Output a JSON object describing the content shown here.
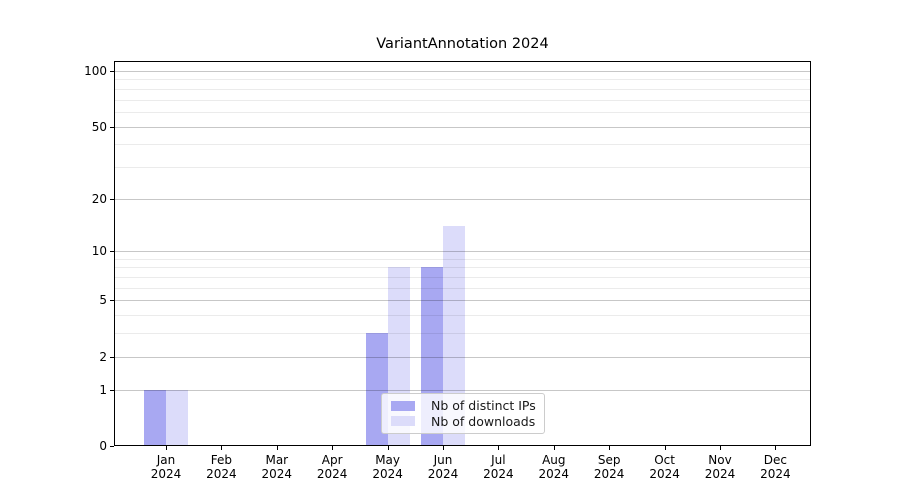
{
  "title": "VariantAnnotation 2024",
  "chart_data": {
    "type": "bar",
    "title": "VariantAnnotation 2024",
    "categories": [
      "Jan",
      "Feb",
      "Mar",
      "Apr",
      "May",
      "Jun",
      "Jul",
      "Aug",
      "Sep",
      "Oct",
      "Nov",
      "Dec"
    ],
    "x_tick_second_line": "2024",
    "series": [
      {
        "name": "Nb of distinct IPs",
        "color": "#a8a8f2",
        "values": [
          1,
          0,
          0,
          0,
          3,
          8,
          0,
          0,
          0,
          0,
          0,
          0
        ]
      },
      {
        "name": "Nb of downloads",
        "color": "#dcdcfa",
        "values": [
          1,
          0,
          0,
          0,
          8,
          14,
          0,
          0,
          0,
          0,
          0,
          0
        ]
      }
    ],
    "y_scale": "log1p",
    "ylim": [
      0,
      100
    ],
    "y_ticks": [
      0,
      1,
      2,
      5,
      10,
      20,
      50,
      100
    ],
    "y_minor_gridlines": [
      3,
      4,
      6,
      7,
      8,
      9,
      30,
      40,
      60,
      70,
      80,
      90
    ],
    "grid": true,
    "legend_position": "lower center"
  },
  "colors": {
    "bar_distinct_ips": "#a8a8f2",
    "bar_downloads": "#dcdcfa",
    "grid_major": "rgba(0,0,0,0.22)",
    "grid_minor": "rgba(0,0,0,0.08)",
    "axis": "#000000",
    "background": "#ffffff"
  }
}
